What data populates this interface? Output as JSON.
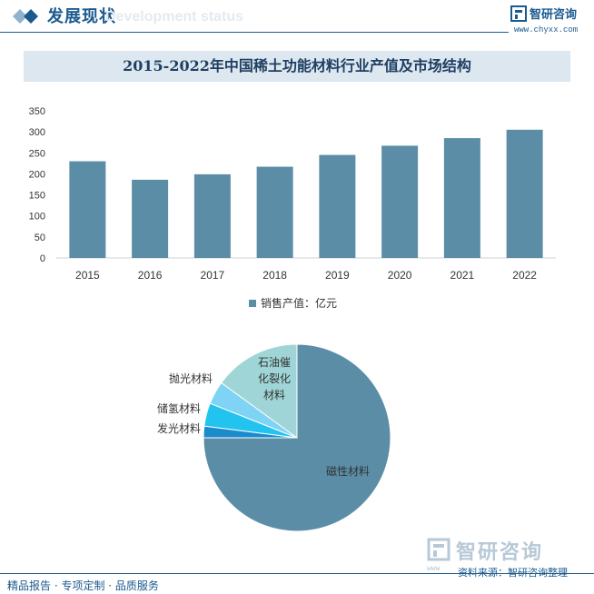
{
  "header": {
    "title": "发展现状",
    "subtitle": "Development status",
    "brand": "智研咨询",
    "url": "www.chyxx.com"
  },
  "colors": {
    "primary": "#1b5a8f",
    "bar": "#5b8ea6",
    "title_band": "#dde7ef"
  },
  "chart_data": [
    {
      "type": "bar",
      "title": "2015-2022年中国稀土功能材料行业产值及市场结构",
      "categories": [
        "2015",
        "2016",
        "2017",
        "2018",
        "2019",
        "2020",
        "2021",
        "2022"
      ],
      "series": [
        {
          "name": "销售产值：亿元",
          "values": [
            230,
            186,
            199,
            217,
            245,
            267,
            285,
            305
          ]
        }
      ],
      "y_ticks": [
        "0",
        "50",
        "100",
        "150",
        "200",
        "250",
        "300",
        "350"
      ],
      "ylim": [
        0,
        350
      ],
      "grid": false,
      "legend": "bottom-center"
    },
    {
      "type": "pie",
      "slices": [
        {
          "label": "磁性材料",
          "value": 75,
          "color": "#5b8ea6"
        },
        {
          "label": "发光材料",
          "value": 2,
          "color": "#1a8ccc"
        },
        {
          "label": "储氢材料",
          "value": 4,
          "color": "#22c4ef"
        },
        {
          "label": "抛光材料",
          "value": 4,
          "color": "#7fd3f5"
        },
        {
          "label": "石油催化裂化材料",
          "value": 15,
          "color": "#9fd5d6"
        }
      ]
    }
  ],
  "footer": {
    "brand": "智研咨询",
    "www": "www",
    "source": "资料来源：智研咨询整理",
    "tagline": "精品报告 · 专项定制 · 品质服务"
  }
}
